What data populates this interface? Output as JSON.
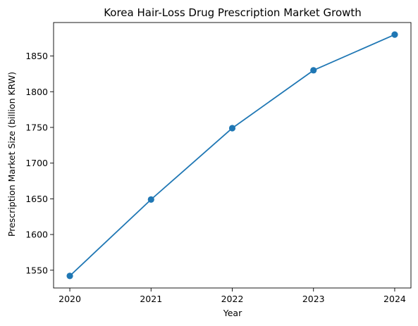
{
  "chart_data": {
    "type": "line",
    "title": "Korea Hair-Loss Drug Prescription Market Growth",
    "xlabel": "Year",
    "ylabel": "Prescription Market Size (billion KRW)",
    "x": [
      2020,
      2021,
      2022,
      2023,
      2024
    ],
    "series": [
      {
        "values": [
          1542,
          1649,
          1749,
          1830,
          1880
        ],
        "color": "#1f77b4",
        "marker": "circle"
      }
    ],
    "xlim": [
      2019.8,
      2024.2
    ],
    "ylim": [
      1525.1,
      1896.9
    ],
    "xticks": [
      "2020",
      "2021",
      "2022",
      "2023",
      "2024"
    ],
    "yticks": [
      "1550",
      "1600",
      "1650",
      "1700",
      "1750",
      "1800",
      "1850"
    ],
    "grid": false,
    "legend": "none"
  }
}
